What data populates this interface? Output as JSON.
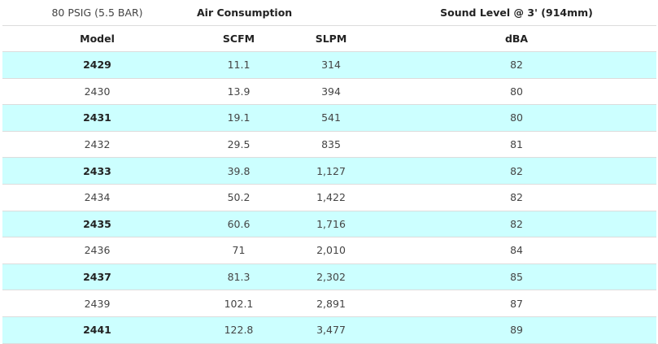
{
  "header": {
    "pressure": "80 PSIG (5.5 BAR)",
    "air_consumption": "Air Consumption",
    "sound_level": "Sound Level @ 3' (914mm)"
  },
  "columns": {
    "model": "Model",
    "scfm": "SCFM",
    "slpm": "SLPM",
    "dba": "dBA"
  },
  "rows": [
    {
      "model": "2429",
      "scfm": "11.1",
      "slpm": "314",
      "dba": "82"
    },
    {
      "model": "2430",
      "scfm": "13.9",
      "slpm": "394",
      "dba": "80"
    },
    {
      "model": "2431",
      "scfm": "19.1",
      "slpm": "541",
      "dba": "80"
    },
    {
      "model": "2432",
      "scfm": "29.5",
      "slpm": "835",
      "dba": "81"
    },
    {
      "model": "2433",
      "scfm": "39.8",
      "slpm": "1,127",
      "dba": "82"
    },
    {
      "model": "2434",
      "scfm": "50.2",
      "slpm": "1,422",
      "dba": "82"
    },
    {
      "model": "2435",
      "scfm": "60.6",
      "slpm": "1,716",
      "dba": "82"
    },
    {
      "model": "2436",
      "scfm": "71",
      "slpm": "2,010",
      "dba": "84"
    },
    {
      "model": "2437",
      "scfm": "81.3",
      "slpm": "2,302",
      "dba": "85"
    },
    {
      "model": "2439",
      "scfm": "102.1",
      "slpm": "2,891",
      "dba": "87"
    },
    {
      "model": "2441",
      "scfm": "122.8",
      "slpm": "3,477",
      "dba": "89"
    }
  ],
  "colors": {
    "row_highlight": "#ccffff",
    "divider": "#dcdcdc"
  }
}
